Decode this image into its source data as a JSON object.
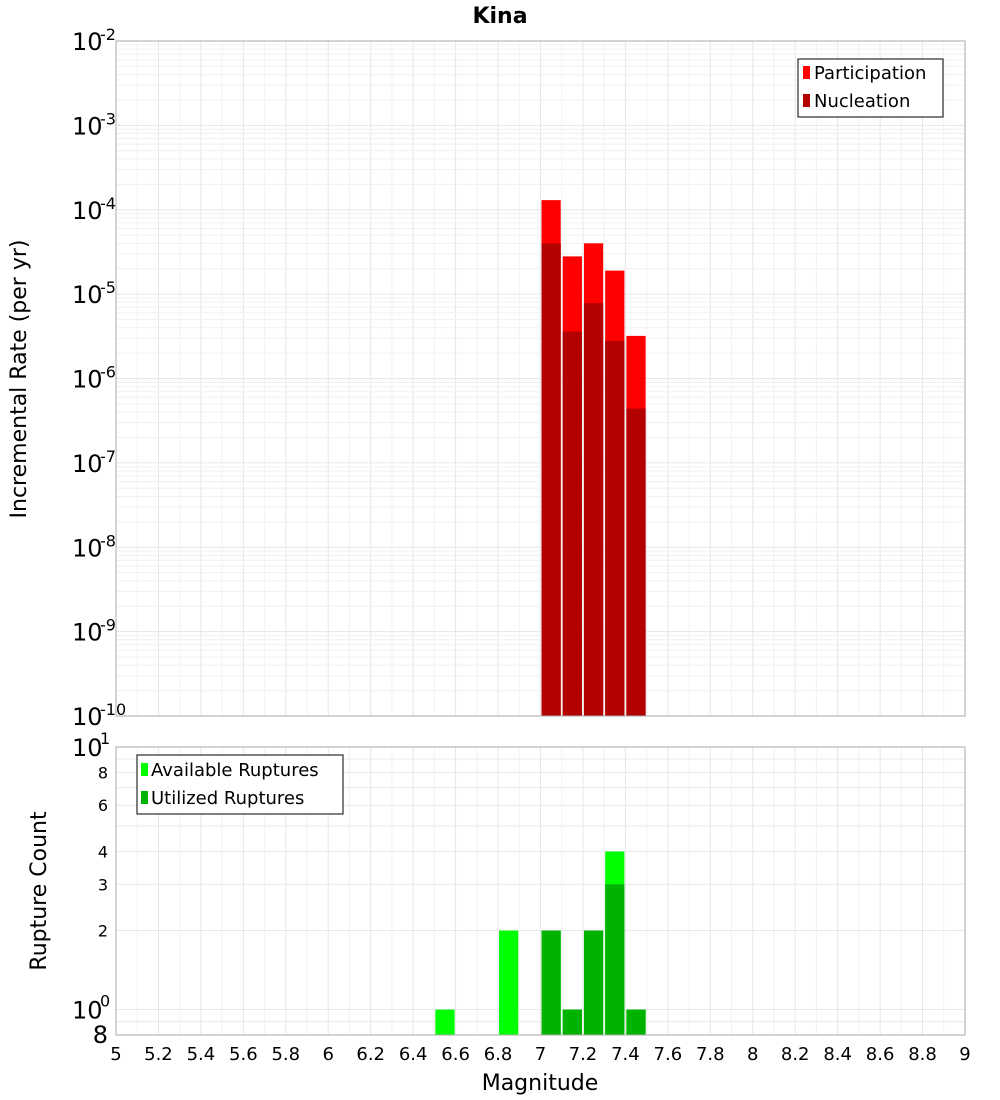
{
  "chart_data": [
    {
      "type": "bar",
      "title": "Kina",
      "ylabel": "Incremental Rate (per yr)",
      "xlim": [
        5,
        9
      ],
      "ylim": [
        1e-10,
        0.01
      ],
      "yscale": "log",
      "y_tick_exponents": [
        "-10",
        "-9",
        "-8",
        "-7",
        "-6",
        "-5",
        "-4",
        "-3",
        "-2"
      ],
      "y_tick_base": "10",
      "bin_width": 0.1,
      "x": [
        7.05,
        7.15,
        7.25,
        7.35,
        7.45
      ],
      "series": [
        {
          "name": "Participation",
          "color": "#ff0000",
          "values": [
            0.00013,
            2.8e-05,
            4e-05,
            1.9e-05,
            3.2e-06
          ]
        },
        {
          "name": "Nucleation",
          "color": "#b30000",
          "values": [
            4e-05,
            3.6e-06,
            7.8e-06,
            2.8e-06,
            4.4e-07
          ]
        }
      ],
      "legend_position": "top-right",
      "grid": true
    },
    {
      "type": "bar",
      "ylabel": "Rupture Count",
      "xlabel": "Magnitude",
      "xlim": [
        5,
        9
      ],
      "ylim": [
        0.8,
        10
      ],
      "yscale": "log",
      "y_major_ticks": [
        {
          "value": 1,
          "base": "10",
          "exp": "0"
        },
        {
          "value": 10,
          "base": "10",
          "exp": "1"
        }
      ],
      "y_minor_ticks": [
        {
          "value": 0.8,
          "label": "8",
          "big": true
        },
        {
          "value": 2,
          "label": "2"
        },
        {
          "value": 3,
          "label": "3"
        },
        {
          "value": 4,
          "label": "4"
        },
        {
          "value": 6,
          "label": "6"
        },
        {
          "value": 8,
          "label": "8"
        }
      ],
      "x_ticks": [
        "5",
        "5.2",
        "5.4",
        "5.6",
        "5.8",
        "6",
        "6.2",
        "6.4",
        "6.6",
        "6.8",
        "7",
        "7.2",
        "7.4",
        "7.6",
        "7.8",
        "8",
        "8.2",
        "8.4",
        "8.6",
        "8.8",
        "9"
      ],
      "bin_width": 0.1,
      "x": [
        6.55,
        6.85,
        7.05,
        7.15,
        7.25,
        7.35,
        7.45
      ],
      "series": [
        {
          "name": "Available Ruptures",
          "color": "#00ff00",
          "values": [
            1,
            2,
            2,
            1,
            2,
            4,
            1
          ]
        },
        {
          "name": "Utilized Ruptures",
          "color": "#00b300",
          "values": [
            0,
            0,
            2,
            1,
            2,
            3,
            1
          ]
        }
      ],
      "legend_position": "top-left",
      "grid": true
    }
  ]
}
